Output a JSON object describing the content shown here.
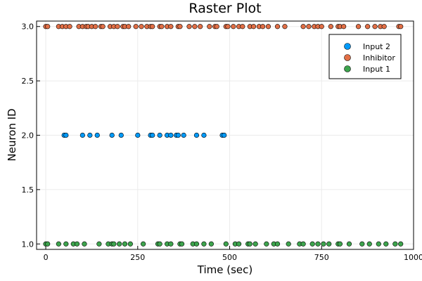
{
  "chart_data": {
    "type": "scatter",
    "title": "Raster Plot",
    "xlabel": "Time (sec)",
    "ylabel": "Neuron ID",
    "xlim": [
      -25,
      1000
    ],
    "ylim": [
      0.95,
      3.05
    ],
    "xticks": [
      0,
      250,
      500,
      750,
      1000
    ],
    "xtick_labels": [
      "0",
      "250",
      "500",
      "750",
      "1000"
    ],
    "yticks": [
      1.0,
      1.5,
      2.0,
      2.5,
      3.0
    ],
    "ytick_labels": [
      "1.0",
      "1.5",
      "2.0",
      "2.5",
      "3.0"
    ],
    "grid": true,
    "legend_position": "top-right",
    "series": [
      {
        "name": "Input 2",
        "color": "#009af9",
        "y": 2.0,
        "x": [
          50,
          55,
          100,
          120,
          140,
          180,
          205,
          250,
          285,
          290,
          310,
          330,
          340,
          355,
          360,
          375,
          410,
          430,
          480,
          485
        ]
      },
      {
        "name": "Inhibitor",
        "color": "#e26f46",
        "y": 3.0,
        "x": [
          0,
          5,
          35,
          45,
          55,
          65,
          90,
          100,
          110,
          115,
          125,
          135,
          150,
          155,
          175,
          185,
          195,
          210,
          215,
          225,
          245,
          260,
          275,
          285,
          290,
          310,
          315,
          330,
          340,
          360,
          365,
          390,
          405,
          420,
          445,
          460,
          465,
          490,
          495,
          510,
          525,
          535,
          555,
          565,
          580,
          590,
          605,
          630,
          650,
          700,
          715,
          730,
          740,
          750,
          775,
          795,
          800,
          810,
          850,
          875,
          895,
          910,
          920,
          960,
          965
        ]
      },
      {
        "name": "Input 1",
        "color": "#3da44d",
        "y": 1.0,
        "x": [
          0,
          5,
          35,
          55,
          75,
          85,
          105,
          145,
          170,
          180,
          185,
          200,
          215,
          230,
          265,
          305,
          310,
          330,
          340,
          365,
          370,
          400,
          410,
          430,
          450,
          490,
          515,
          525,
          550,
          555,
          570,
          600,
          620,
          630,
          660,
          690,
          700,
          725,
          740,
          755,
          770,
          795,
          800,
          825,
          860,
          880,
          905,
          925,
          950,
          965
        ]
      }
    ]
  }
}
